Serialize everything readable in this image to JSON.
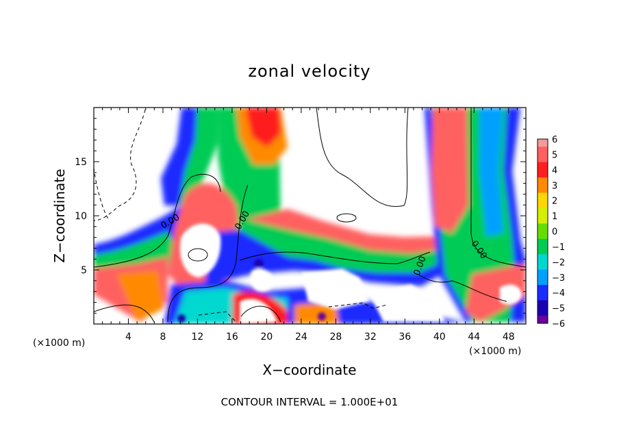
{
  "chart_data": {
    "type": "heatmap",
    "title": "zonal velocity",
    "xlabel": "X−coordinate",
    "ylabel": "Z−coordinate",
    "x_unit_label": "(×1000 m)",
    "x_unit_label_right": "(×1000 m)",
    "xlim": [
      0,
      50
    ],
    "ylim": [
      0,
      20
    ],
    "x_ticks": [
      4,
      8,
      12,
      16,
      20,
      24,
      28,
      32,
      36,
      40,
      44,
      48
    ],
    "y_ticks": [
      5,
      10,
      15
    ],
    "colorbar": {
      "levels": [
        6,
        5,
        4,
        3,
        2,
        1,
        0,
        -1,
        -2,
        -3,
        -4,
        -5,
        -6
      ],
      "labels": [
        "6",
        "5",
        "4",
        "3",
        "2",
        "1",
        "0",
        "−1",
        "−2",
        "−3",
        "−4",
        "−5",
        "−6"
      ],
      "colors": [
        "#f49a9a",
        "#ff6060",
        "#ff1f1f",
        "#ff8a00",
        "#ffd700",
        "#d4f000",
        "#66dd00",
        "#00cc55",
        "#00d8d0",
        "#00a0ff",
        "#1a2cff",
        "#1a00b0",
        "#6a00a0"
      ]
    },
    "contour_labels": [
      {
        "text": "0.00",
        "x": 8.5,
        "y": 9.5
      },
      {
        "text": "0.00",
        "x": 17.8,
        "y": 9.6
      },
      {
        "text": "0.00",
        "x": 38.2,
        "y": 5.3
      },
      {
        "text": "0.00",
        "x": 45.0,
        "y": 6.5
      }
    ],
    "footer": "CONTOUR INTERVAL = 1.000E+01"
  }
}
